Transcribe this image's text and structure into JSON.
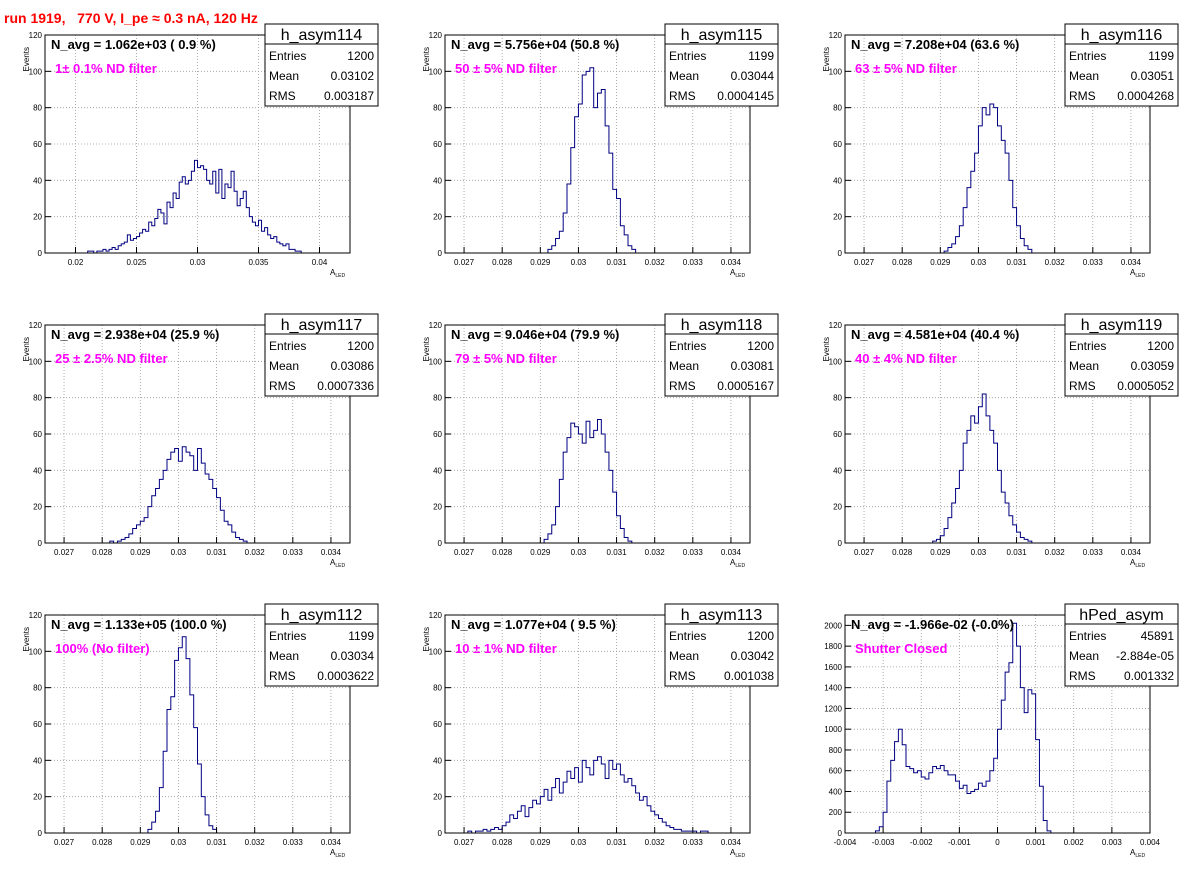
{
  "run_title": "run 1919,   770 V, I_pe ≈ 0.3 nA, 120 Hz",
  "colors": {
    "title": "#ff0000",
    "filter_label": "#ff00ff",
    "histogram": "#000080",
    "grid": "#999999"
  },
  "chart_data": [
    {
      "type": "bar",
      "histogram": "h_asym114",
      "title": "h_asym114",
      "stats": {
        "Entries": "1200",
        "Mean": "0.03102",
        "RMS": "0.003187"
      },
      "navg_label": "N_avg = 1.062e+03 ( 0.9 %)",
      "filter_label": "1± 0.1% ND filter",
      "xlabel_main": "A",
      "xlabel_sub": "LED",
      "ylabel": "Events",
      "xlim": [
        0.0175,
        0.0425
      ],
      "ylim": [
        0,
        120
      ],
      "xticks": [
        0.02,
        0.025,
        0.03,
        0.035,
        0.04
      ],
      "xtick_labels": [
        "0.02",
        "0.025",
        "0.03",
        "0.035",
        "0.04"
      ],
      "yticks": [
        0,
        20,
        40,
        60,
        80,
        100,
        120
      ],
      "ytick_labels": [
        "0",
        "20",
        "40",
        "60",
        "80",
        "100",
        "120"
      ],
      "bin_edges": [
        0.021,
        0.0205
      ],
      "bin_width": 0.00025,
      "values": [
        1,
        1,
        0,
        1,
        1,
        2,
        1,
        2,
        3,
        2,
        4,
        5,
        6,
        10,
        7,
        8,
        9,
        11,
        13,
        12,
        17,
        15,
        19,
        24,
        22,
        16,
        28,
        25,
        33,
        30,
        39,
        42,
        38,
        40,
        45,
        51,
        47,
        48,
        46,
        40,
        38,
        45,
        33,
        46,
        30,
        38,
        36,
        45,
        34,
        26,
        30,
        34,
        25,
        20,
        17,
        15,
        18,
        12,
        14,
        10,
        8,
        9,
        6,
        5,
        4,
        5,
        2,
        2,
        1,
        1
      ]
    },
    {
      "type": "bar",
      "histogram": "h_asym115",
      "title": "h_asym115",
      "stats": {
        "Entries": "1199",
        "Mean": "0.03044",
        "RMS": "0.0004145"
      },
      "navg_label": "N_avg = 5.756e+04 (50.8 %)",
      "filter_label": "50 ± 5% ND filter",
      "xlabel_main": "A",
      "xlabel_sub": "LED",
      "ylabel": "Events",
      "xlim": [
        0.0265,
        0.0345
      ],
      "ylim": [
        0,
        120
      ],
      "xticks": [
        0.027,
        0.028,
        0.029,
        0.03,
        0.031,
        0.032,
        0.033,
        0.034
      ],
      "xtick_labels": [
        "0.027",
        "0.028",
        "0.029",
        "0.03",
        "0.031",
        "0.032",
        "0.033",
        "0.034"
      ],
      "yticks": [
        0,
        20,
        40,
        60,
        80,
        100,
        120
      ],
      "ytick_labels": [
        "0",
        "20",
        "40",
        "60",
        "80",
        "100",
        "120"
      ],
      "bin_edges": [
        0.0292
      ],
      "bin_width": 0.0001,
      "values": [
        2,
        4,
        8,
        12,
        22,
        38,
        58,
        75,
        82,
        98,
        100,
        102,
        80,
        88,
        90,
        70,
        55,
        35,
        30,
        15,
        10,
        4,
        2
      ]
    },
    {
      "type": "bar",
      "histogram": "h_asym116",
      "title": "h_asym116",
      "stats": {
        "Entries": "1199",
        "Mean": "0.03051",
        "RMS": "0.0004268"
      },
      "navg_label": "N_avg = 7.208e+04 (63.6 %)",
      "filter_label": "63 ± 5% ND filter",
      "xlabel_main": "A",
      "xlabel_sub": "LED",
      "ylabel": "Events",
      "xlim": [
        0.0265,
        0.0345
      ],
      "ylim": [
        0,
        120
      ],
      "xticks": [
        0.027,
        0.028,
        0.029,
        0.03,
        0.031,
        0.032,
        0.033,
        0.034
      ],
      "xtick_labels": [
        "0.027",
        "0.028",
        "0.029",
        "0.03",
        "0.031",
        "0.032",
        "0.033",
        "0.034"
      ],
      "yticks": [
        0,
        20,
        40,
        60,
        80,
        100,
        120
      ],
      "ytick_labels": [
        "0",
        "20",
        "40",
        "60",
        "80",
        "100",
        "120"
      ],
      "bin_edges": [
        0.0291
      ],
      "bin_width": 0.0001,
      "values": [
        1,
        3,
        5,
        9,
        15,
        25,
        36,
        45,
        55,
        70,
        80,
        76,
        82,
        80,
        70,
        62,
        55,
        40,
        25,
        15,
        8,
        4,
        2
      ]
    },
    {
      "type": "bar",
      "histogram": "h_asym117",
      "title": "h_asym117",
      "stats": {
        "Entries": "1200",
        "Mean": "0.03086",
        "RMS": "0.0007336"
      },
      "navg_label": "N_avg = 2.938e+04 (25.9 %)",
      "filter_label": "25 ± 2.5% ND filter",
      "xlabel_main": "A",
      "xlabel_sub": "LED",
      "ylabel": "Events",
      "xlim": [
        0.0265,
        0.0345
      ],
      "ylim": [
        0,
        120
      ],
      "xticks": [
        0.027,
        0.028,
        0.029,
        0.03,
        0.031,
        0.032,
        0.033,
        0.034
      ],
      "xtick_labels": [
        "0.027",
        "0.028",
        "0.029",
        "0.03",
        "0.031",
        "0.032",
        "0.033",
        "0.034"
      ],
      "yticks": [
        0,
        20,
        40,
        60,
        80,
        100,
        120
      ],
      "ytick_labels": [
        "0",
        "20",
        "40",
        "60",
        "80",
        "100",
        "120"
      ],
      "bin_edges": [
        0.0282
      ],
      "bin_width": 0.0001,
      "values": [
        1,
        0,
        1,
        2,
        3,
        5,
        8,
        10,
        12,
        14,
        20,
        26,
        30,
        35,
        40,
        46,
        50,
        52,
        45,
        53,
        50,
        48,
        40,
        52,
        44,
        38,
        35,
        30,
        25,
        18,
        12,
        10,
        6,
        3,
        2,
        1
      ]
    },
    {
      "type": "bar",
      "histogram": "h_asym118",
      "title": "h_asym118",
      "stats": {
        "Entries": "1200",
        "Mean": "0.03081",
        "RMS": "0.0005167"
      },
      "navg_label": "N_avg = 9.046e+04 (79.9 %)",
      "filter_label": "79 ± 5% ND filter",
      "xlabel_main": "A",
      "xlabel_sub": "LED",
      "ylabel": "Events",
      "xlim": [
        0.0265,
        0.0345
      ],
      "ylim": [
        0,
        120
      ],
      "xticks": [
        0.027,
        0.028,
        0.029,
        0.03,
        0.031,
        0.032,
        0.033,
        0.034
      ],
      "xtick_labels": [
        "0.027",
        "0.028",
        "0.029",
        "0.03",
        "0.031",
        "0.032",
        "0.033",
        "0.034"
      ],
      "yticks": [
        0,
        20,
        40,
        60,
        80,
        100,
        120
      ],
      "ytick_labels": [
        "0",
        "20",
        "40",
        "60",
        "80",
        "100",
        "120"
      ],
      "bin_edges": [
        0.0291
      ],
      "bin_width": 0.0001,
      "values": [
        2,
        5,
        10,
        20,
        35,
        50,
        58,
        66,
        64,
        60,
        55,
        67,
        58,
        62,
        68,
        60,
        50,
        40,
        28,
        15,
        8,
        3,
        1
      ]
    },
    {
      "type": "bar",
      "histogram": "h_asym119",
      "title": "h_asym119",
      "stats": {
        "Entries": "1200",
        "Mean": "0.03059",
        "RMS": "0.0005052"
      },
      "navg_label": "N_avg = 4.581e+04 (40.4 %)",
      "filter_label": "40 ± 4% ND filter",
      "xlabel_main": "A",
      "xlabel_sub": "LED",
      "ylabel": "Events",
      "xlim": [
        0.0265,
        0.0345
      ],
      "ylim": [
        0,
        120
      ],
      "xticks": [
        0.027,
        0.028,
        0.029,
        0.03,
        0.031,
        0.032,
        0.033,
        0.034
      ],
      "xtick_labels": [
        "0.027",
        "0.028",
        "0.029",
        "0.03",
        "0.031",
        "0.032",
        "0.033",
        "0.034"
      ],
      "yticks": [
        0,
        20,
        40,
        60,
        80,
        100,
        120
      ],
      "ytick_labels": [
        "0",
        "20",
        "40",
        "60",
        "80",
        "100",
        "120"
      ],
      "bin_edges": [
        0.0288
      ],
      "bin_width": 0.0001,
      "values": [
        1,
        2,
        4,
        8,
        14,
        22,
        30,
        40,
        55,
        62,
        70,
        66,
        75,
        82,
        70,
        62,
        55,
        40,
        28,
        22,
        15,
        10,
        6,
        3,
        2,
        1
      ]
    },
    {
      "type": "bar",
      "histogram": "h_asym112",
      "title": "h_asym112",
      "stats": {
        "Entries": "1199",
        "Mean": "0.03034",
        "RMS": "0.0003622"
      },
      "navg_label": "N_avg = 1.133e+05 (100.0 %)",
      "filter_label": "100% (No filter)",
      "xlabel_main": "A",
      "xlabel_sub": "LED",
      "ylabel": "Events",
      "xlim": [
        0.0265,
        0.0345
      ],
      "ylim": [
        0,
        120
      ],
      "xticks": [
        0.027,
        0.028,
        0.029,
        0.03,
        0.031,
        0.032,
        0.033,
        0.034
      ],
      "xtick_labels": [
        "0.027",
        "0.028",
        "0.029",
        "0.03",
        "0.031",
        "0.032",
        "0.033",
        "0.034"
      ],
      "yticks": [
        0,
        20,
        40,
        60,
        80,
        100,
        120
      ],
      "ytick_labels": [
        "0",
        "20",
        "40",
        "60",
        "80",
        "100",
        "120"
      ],
      "bin_edges": [
        0.0292
      ],
      "bin_width": 0.0001,
      "values": [
        2,
        6,
        12,
        25,
        45,
        68,
        75,
        95,
        102,
        108,
        96,
        76,
        58,
        38,
        20,
        10,
        4,
        2
      ]
    },
    {
      "type": "bar",
      "histogram": "h_asym113",
      "title": "h_asym113",
      "stats": {
        "Entries": "1200",
        "Mean": "0.03042",
        "RMS": "0.001038"
      },
      "navg_label": "N_avg = 1.077e+04 ( 9.5 %)",
      "filter_label": "10 ± 1% ND filter",
      "xlabel_main": "A",
      "xlabel_sub": "LED",
      "ylabel": "Events",
      "xlim": [
        0.0265,
        0.0345
      ],
      "ylim": [
        0,
        120
      ],
      "xticks": [
        0.027,
        0.028,
        0.029,
        0.03,
        0.031,
        0.032,
        0.033,
        0.034
      ],
      "xtick_labels": [
        "0.027",
        "0.028",
        "0.029",
        "0.03",
        "0.031",
        "0.032",
        "0.033",
        "0.034"
      ],
      "yticks": [
        0,
        20,
        40,
        60,
        80,
        100,
        120
      ],
      "ytick_labels": [
        "0",
        "20",
        "40",
        "60",
        "80",
        "100",
        "120"
      ],
      "bin_edges": [
        0.0271
      ],
      "bin_width": 0.0001,
      "values": [
        1,
        0,
        1,
        1,
        2,
        1,
        2,
        3,
        2,
        4,
        6,
        10,
        8,
        12,
        15,
        9,
        14,
        18,
        16,
        20,
        24,
        18,
        25,
        30,
        22,
        28,
        34,
        30,
        36,
        28,
        40,
        36,
        32,
        40,
        42,
        38,
        30,
        40,
        35,
        38,
        32,
        28,
        30,
        26,
        22,
        18,
        20,
        15,
        12,
        10,
        8,
        6,
        4,
        3,
        2,
        2,
        1,
        1,
        1,
        1,
        0,
        1,
        1
      ]
    },
    {
      "type": "bar",
      "histogram": "hPed_asym",
      "title": "hPed_asym",
      "stats": {
        "Entries": "45891",
        "Mean": "-2.884e-05",
        "RMS": "0.001332"
      },
      "navg_label": "N_avg = -1.966e-02 (-0.0%)",
      "filter_label": "Shutter Closed",
      "xlabel_main": "A",
      "xlabel_sub": "LED",
      "ylabel": "",
      "xlim": [
        -0.004,
        0.004
      ],
      "ylim": [
        0,
        2100
      ],
      "xticks": [
        -0.004,
        -0.003,
        -0.002,
        -0.001,
        0,
        0.001,
        0.002,
        0.003,
        0.004
      ],
      "xtick_labels": [
        "-0.004",
        "-0.003",
        "-0.002",
        "-0.001",
        "0",
        "0.001",
        "0.002",
        "0.003",
        "0.004"
      ],
      "yticks": [
        0,
        200,
        400,
        600,
        800,
        1000,
        1200,
        1400,
        1600,
        1800,
        2000
      ],
      "ytick_labels": [
        "0",
        "200",
        "400",
        "600",
        "800",
        "1000",
        "1200",
        "1400",
        "1600",
        "1800",
        "2000"
      ],
      "bin_edges": [
        -0.0032
      ],
      "bin_width": 0.0001,
      "values": [
        20,
        60,
        200,
        500,
        700,
        880,
        1000,
        850,
        640,
        620,
        580,
        600,
        540,
        520,
        580,
        640,
        620,
        650,
        600,
        560,
        560,
        500,
        430,
        460,
        380,
        400,
        420,
        480,
        450,
        500,
        600,
        720,
        1000,
        1280,
        1550,
        1640,
        2020,
        1800,
        1400,
        1160,
        1380,
        1340,
        900,
        450,
        120,
        20
      ]
    }
  ]
}
